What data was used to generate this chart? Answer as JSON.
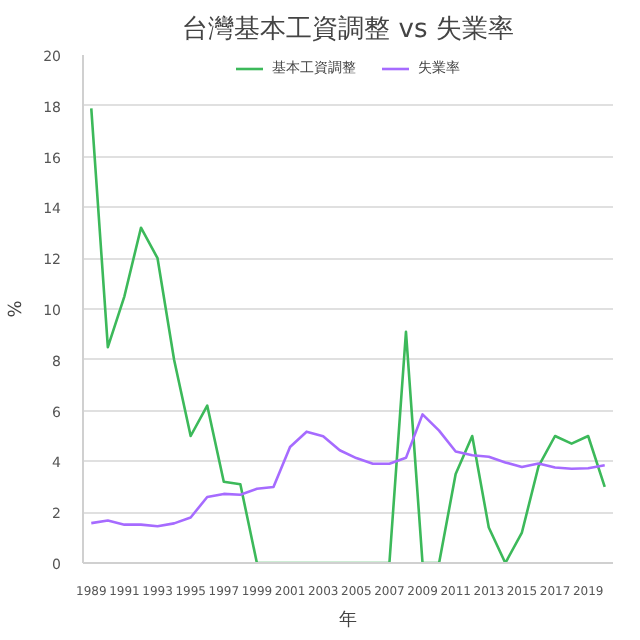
{
  "chart_data": {
    "type": "line",
    "title": "台灣基本工資調整 vs 失業率",
    "xlabel": "年",
    "ylabel": "%",
    "x": [
      1989,
      1990,
      1991,
      1992,
      1993,
      1994,
      1995,
      1996,
      1997,
      1998,
      1999,
      2000,
      2001,
      2002,
      2003,
      2004,
      2005,
      2006,
      2007,
      2008,
      2009,
      2010,
      2011,
      2012,
      2013,
      2014,
      2015,
      2016,
      2017,
      2018,
      2019,
      2020
    ],
    "series": [
      {
        "name": "基本工資調整",
        "color": "#3cb95a",
        "values": [
          17.9,
          8.5,
          10.5,
          13.2,
          12.0,
          8.0,
          5.0,
          6.2,
          3.2,
          3.1,
          0,
          0,
          0,
          0,
          0,
          0,
          0,
          0,
          0,
          9.1,
          0,
          0,
          3.5,
          5.0,
          1.4,
          0,
          1.2,
          3.8,
          5.0,
          4.7,
          5.0,
          3.0
        ]
      },
      {
        "name": "失業率",
        "color": "#a66bff",
        "values": [
          1.57,
          1.67,
          1.51,
          1.51,
          1.45,
          1.56,
          1.79,
          2.6,
          2.72,
          2.69,
          2.92,
          2.99,
          4.57,
          5.17,
          4.99,
          4.44,
          4.13,
          3.91,
          3.91,
          4.14,
          5.85,
          5.21,
          4.39,
          4.24,
          4.18,
          3.96,
          3.78,
          3.92,
          3.76,
          3.71,
          3.73,
          3.85
        ]
      }
    ],
    "xlim": [
      1988.5,
      2020.5
    ],
    "xticks": [
      1989,
      1991,
      1993,
      1995,
      1997,
      1999,
      2001,
      2003,
      2005,
      2007,
      2009,
      2011,
      2013,
      2015,
      2017,
      2019
    ],
    "ylim": [
      0,
      20
    ],
    "yticks": [
      0,
      2,
      4,
      6,
      8,
      10,
      12,
      14,
      16,
      18,
      20
    ],
    "grid": "y",
    "legend": "top",
    "marker": "none",
    "line_style": "solid"
  }
}
